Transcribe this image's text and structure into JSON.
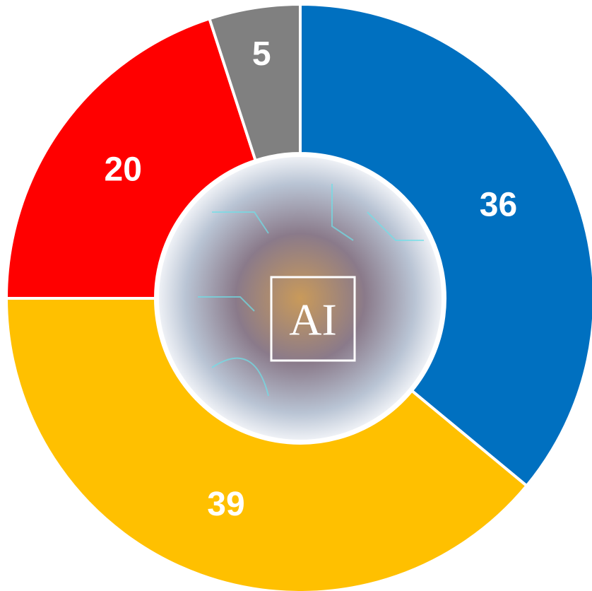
{
  "chart_data": {
    "type": "donut",
    "center_text": "AI",
    "categories": [
      null,
      null,
      null,
      null
    ],
    "values": [
      36,
      39,
      20,
      5
    ],
    "colors": [
      "#0070c0",
      "#ffc000",
      "#ff0000",
      "#808080"
    ]
  }
}
